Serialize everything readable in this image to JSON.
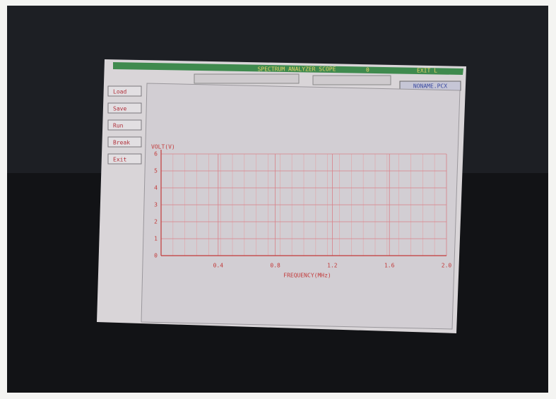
{
  "window": {
    "title": "SPECTRUM ANALYZER SCOPE",
    "status": "0",
    "menu": "EXIT L",
    "file_name": "NONAME.PCX"
  },
  "buttons": [
    "Load",
    "Save",
    "Run",
    "Break",
    "Exit"
  ],
  "chart_data": {
    "type": "line",
    "y_label": "VOLT(V)",
    "x_label": "FREQUENCY(MHz)",
    "xlim": [
      0,
      2
    ],
    "ylim": [
      0,
      6
    ],
    "xticks": [
      0.4,
      0.8,
      1.2,
      1.6,
      {
        "value": 2,
        "label": "2.0"
      }
    ],
    "yticks": [
      0,
      1,
      2,
      3,
      4,
      5,
      6
    ],
    "grid": true,
    "color": "#c23a3a"
  }
}
